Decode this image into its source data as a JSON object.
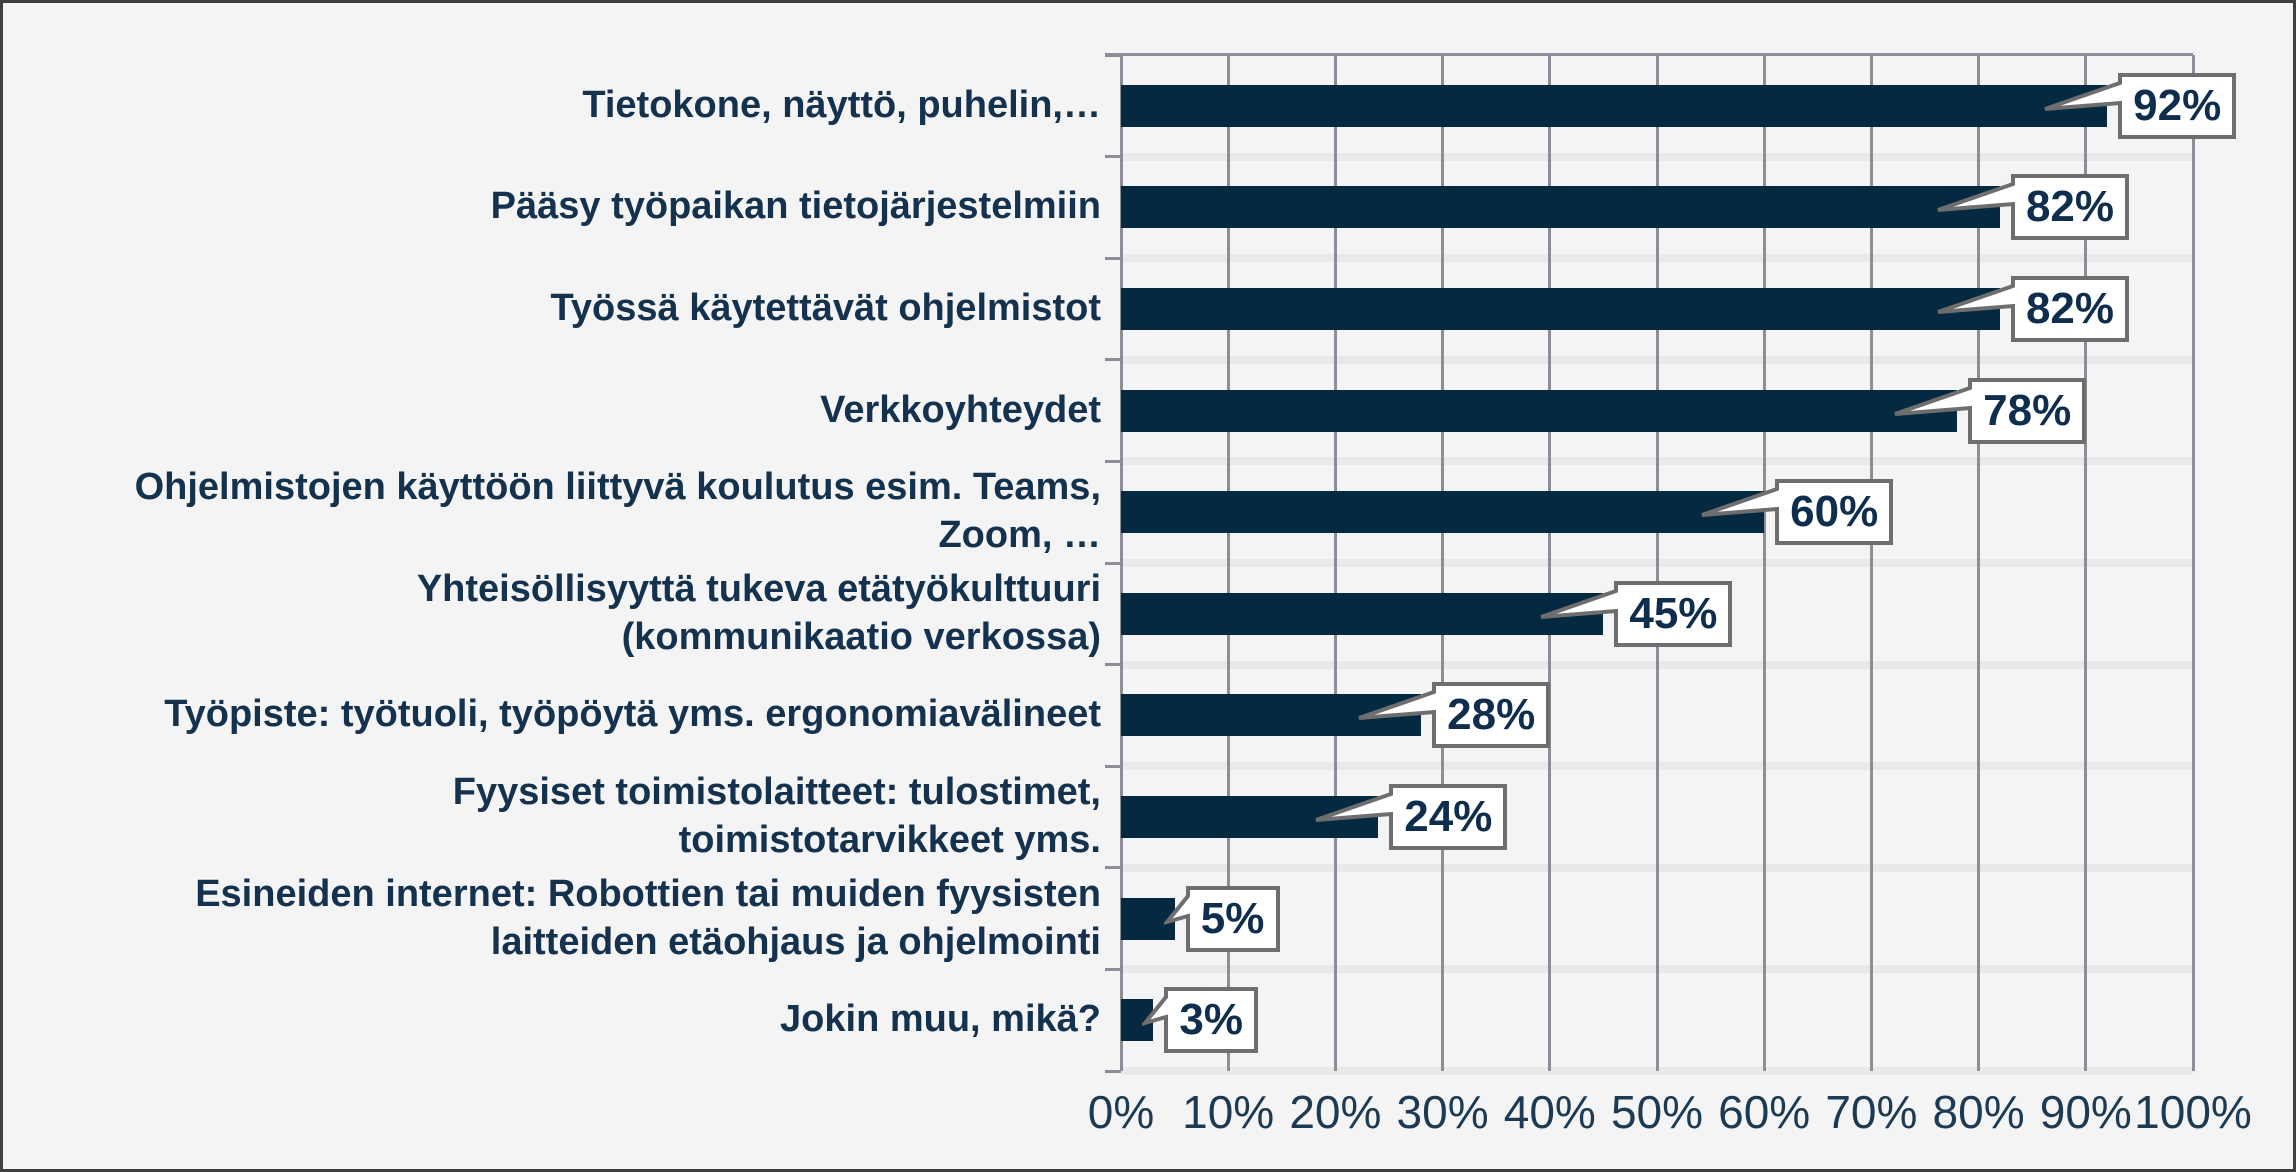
{
  "chart_data": {
    "type": "bar",
    "orientation": "horizontal",
    "title": "",
    "xlabel": "",
    "ylabel": "",
    "xlim": [
      0,
      100
    ],
    "grid": "vertical major gridlines every 10%, light separator bands between category rows",
    "legend": "none",
    "categories": [
      "Tietokone, näyttö, puhelin,…",
      "Pääsy työpaikan tietojärjestelmiin",
      "Työssä käytettävät ohjelmistot",
      "Verkkoyhteydet",
      "Ohjelmistojen käyttöön liittyvä koulutus esim. Teams,\nZoom, …",
      "Yhteisöllisyyttä tukeva etätyökulttuuri\n(kommunikaatio verkossa)",
      "Työpiste: työtuoli, työpöytä yms. ergonomiavälineet",
      "Fyysiset toimistolaitteet: tulostimet,\ntoimistotarvikkeet yms.",
      "Esineiden internet: Robottien tai muiden fyysisten\nlaitteiden etäohjaus ja ohjelmointi",
      "Jokin muu, mikä?"
    ],
    "values": [
      92,
      82,
      82,
      78,
      60,
      45,
      28,
      24,
      5,
      3
    ],
    "value_labels": [
      "92%",
      "82%",
      "82%",
      "78%",
      "60%",
      "45%",
      "28%",
      "24%",
      "5%",
      "3%"
    ],
    "x_ticks": [
      "0%",
      "10%",
      "20%",
      "30%",
      "40%",
      "50%",
      "60%",
      "70%",
      "80%",
      "90%",
      "100%"
    ],
    "data_label_style": "white rectangular callout boxes with gray border and tail pointing to bar end"
  },
  "colors": {
    "bar": "#042940",
    "category_text": "#14324E",
    "data_label_text": "#0F2D4D",
    "axis_text": "#1C3A53",
    "gridline": "#8B8E96",
    "band": "#E9E9E9",
    "background": "#F4F4F4",
    "callout_border": "#6E6E6E",
    "callout_fill": "#FFFFFF",
    "frame": "#3F3F3F"
  }
}
